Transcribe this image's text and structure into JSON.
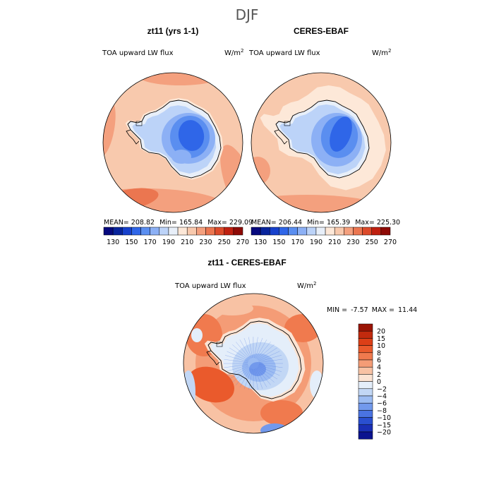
{
  "page_title": "DJF",
  "chart_data": [
    {
      "type": "heatmap",
      "projection": "south-polar-stereographic",
      "title": "zt11 (yrs 1-1)",
      "variable": "TOA upward LW flux",
      "units": "W/m",
      "units_exp": "2",
      "stats": {
        "mean_label": "MEAN=",
        "mean": "208.82",
        "min_label": "Min=",
        "min": "165.84",
        "max_label": "Max=",
        "max": "229.09"
      },
      "colorbar": {
        "orientation": "horizontal",
        "ticks": [
          "130",
          "150",
          "170",
          "190",
          "210",
          "230",
          "250",
          "270"
        ],
        "colors": [
          "#06097e",
          "#08249c",
          "#1741cc",
          "#2f66e8",
          "#5a8ef0",
          "#8cb0f5",
          "#bcd3f8",
          "#e8eff9",
          "#fde8d8",
          "#f8c9ad",
          "#f4a07e",
          "#eb7650",
          "#dc4a2a",
          "#bf2010",
          "#8e0a06"
        ]
      },
      "field": {
        "ocean_value": 222,
        "antarctica_value": 180,
        "interior_min_value": 166
      }
    },
    {
      "type": "heatmap",
      "projection": "south-polar-stereographic",
      "title": "CERES-EBAF",
      "variable": "TOA upward LW flux",
      "units": "W/m",
      "units_exp": "2",
      "stats": {
        "mean_label": "MEAN=",
        "mean": "206.44",
        "min_label": "Min=",
        "min": "165.39",
        "max_label": "Max=",
        "max": "225.30"
      },
      "colorbar": {
        "orientation": "horizontal",
        "ticks": [
          "130",
          "150",
          "170",
          "190",
          "210",
          "230",
          "250",
          "270"
        ],
        "colors": [
          "#06097e",
          "#08249c",
          "#1741cc",
          "#2f66e8",
          "#5a8ef0",
          "#8cb0f5",
          "#bcd3f8",
          "#e8eff9",
          "#fde8d8",
          "#f8c9ad",
          "#f4a07e",
          "#eb7650",
          "#dc4a2a",
          "#bf2010",
          "#8e0a06"
        ]
      },
      "field": {
        "ocean_value": 218,
        "antarctica_value": 178,
        "interior_min_value": 165
      }
    },
    {
      "type": "heatmap",
      "projection": "south-polar-stereographic",
      "title": "zt11 - CERES-EBAF",
      "variable": "TOA upward LW flux",
      "units": "W/m",
      "units_exp": "2",
      "stats": {
        "min_label": "MIN =",
        "min": "-7.57",
        "max_label": "MAX =",
        "max": "11.44"
      },
      "colorbar": {
        "orientation": "vertical",
        "ticks": [
          "20",
          "15",
          "10",
          "8",
          "6",
          "4",
          "2",
          "0",
          "−2",
          "−4",
          "−6",
          "−8",
          "−10",
          "−15",
          "−20"
        ],
        "colors": [
          "#9a1405",
          "#c12a0e",
          "#dc3f17",
          "#ea5a2c",
          "#f07a4e",
          "#f49c76",
          "#f8c2a4",
          "#fbe3d3",
          "#e4eefa",
          "#c2d7f5",
          "#9cbcf2",
          "#7299ec",
          "#4a73e2",
          "#2a4fd0",
          "#1a2fb5",
          "#0b138f"
        ]
      },
      "field": {
        "ocean_value": 3,
        "antarctica_value": -2
      }
    }
  ]
}
